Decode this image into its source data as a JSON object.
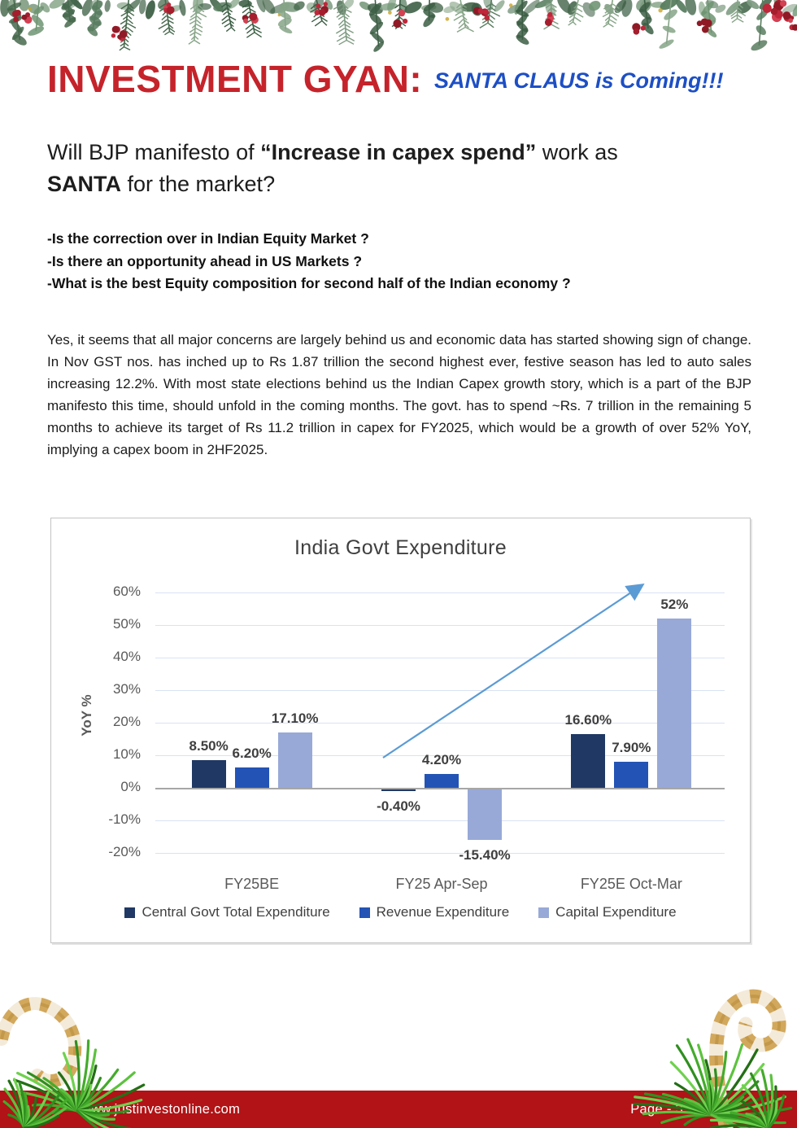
{
  "header": {
    "title": "INVESTMENT GYAN:",
    "subtitle": "SANTA CLAUS is Coming!!!",
    "title_color": "#C5232B",
    "subtitle_color": "#1D4FC5"
  },
  "heading": {
    "line1_pre": "Will BJP manifesto of ",
    "line1_bold": "“Increase in capex spend”",
    "line1_post": " work as",
    "line2_bold": "SANTA",
    "line2_post": " for the market?"
  },
  "questions": [
    "-Is the correction over in Indian Equity Market ?",
    "-Is there an opportunity ahead in US Markets ?",
    "-What is the best Equity composition for second half of the Indian economy ?"
  ],
  "paragraph": "Yes, it seems that all major concerns are largely behind us and economic data has started showing sign of change. In Nov GST nos. has inched up to Rs 1.87 trillion the second highest ever, festive season has led to auto sales increasing 12.2%. With most state elections behind us the Indian Capex growth story, which is a part of the BJP manifesto this time, should unfold in the coming months. The govt. has to spend ~Rs. 7 trillion in the remaining 5 months to achieve its target of Rs 11.2 trillion in capex for FY2025, which would be a growth of over 52% YoY, implying a capex boom in 2HF2025.",
  "chart_data": {
    "type": "bar",
    "title": "India Govt Expenditure",
    "xlabel": "",
    "ylabel": "YoY %",
    "categories": [
      "FY25BE",
      "FY25 Apr-Sep",
      "FY25E Oct-Mar"
    ],
    "series": [
      {
        "name": "Central Govt Total Expenditure",
        "color": "#1F3864",
        "values": [
          8.5,
          -0.4,
          16.6
        ],
        "labels": [
          "8.50%",
          "-0.40%",
          "16.60%"
        ]
      },
      {
        "name": "Revenue Expenditure",
        "color": "#2353B5",
        "values": [
          6.2,
          4.2,
          7.9
        ],
        "labels": [
          "6.20%",
          "4.20%",
          "7.90%"
        ]
      },
      {
        "name": "Capital Expenditure",
        "color": "#98A9D8",
        "values": [
          17.1,
          -15.4,
          52
        ],
        "labels": [
          "17.10%",
          "-15.40%",
          "52%"
        ]
      }
    ],
    "ylim": [
      -20,
      65
    ],
    "yticks": [
      {
        "v": 60,
        "label": "60%"
      },
      {
        "v": 50,
        "label": "50%"
      },
      {
        "v": 40,
        "label": "40%"
      },
      {
        "v": 30,
        "label": "30%"
      },
      {
        "v": 20,
        "label": "20%"
      },
      {
        "v": 10,
        "label": "10%"
      },
      {
        "v": 0,
        "label": "0%"
      },
      {
        "v": -10,
        "label": "-10%"
      },
      {
        "v": -20,
        "label": "-20%"
      }
    ],
    "grid": true,
    "legend_position": "bottom",
    "annotation": "upward blue trend arrow from FY25 Apr-Sep toward the 52% Capital Expenditure bar"
  },
  "footer": {
    "website": "www.justinvestonline.com",
    "page_label": "Page - 3",
    "bar_color": "#B11316"
  },
  "decor": {
    "garland_greens": [
      "#3c5e44",
      "#587d5f",
      "#6f9472",
      "#86a487",
      "#46684c",
      "#7d9b80"
    ],
    "berry_red": "#c0273a",
    "needle_green": "#44ab2b",
    "candy_gold": "#d2a85c",
    "candy_cream": "#f4ead9"
  }
}
